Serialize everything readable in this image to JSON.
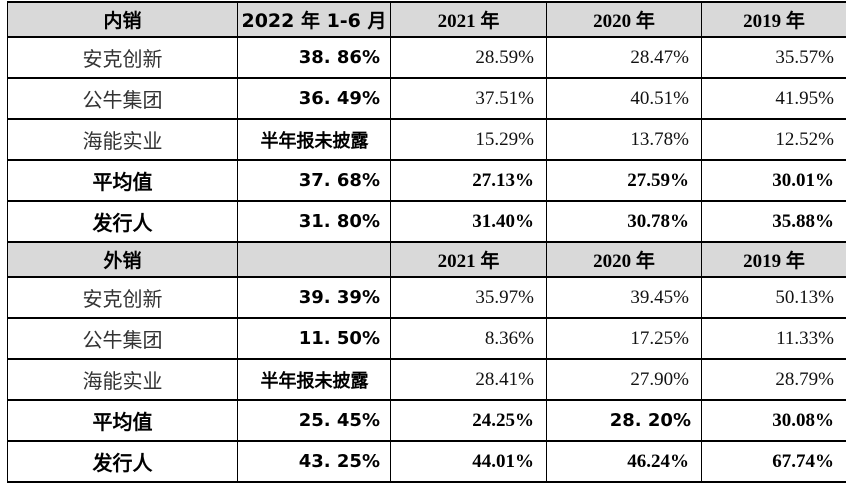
{
  "colors": {
    "header_bg": "#d9d9d9",
    "border": "#000000",
    "text": "#000000"
  },
  "note_text": "半年报未披露",
  "table": {
    "sections": [
      {
        "name": "domestic-sales",
        "header_cells": [
          "内销",
          "2022 年 1-6 月",
          "2021 年",
          "2020 年",
          "2019 年"
        ],
        "rows": [
          {
            "label": "安克创新",
            "emphasis": false,
            "values": [
              "38. 86%",
              "28.59%",
              "28.47%",
              "35.57%"
            ]
          },
          {
            "label": "公牛集团",
            "emphasis": false,
            "values": [
              "36. 49%",
              "37.51%",
              "40.51%",
              "41.95%"
            ]
          },
          {
            "label": "海能实业",
            "emphasis": false,
            "values": [
              "半年报未披露",
              "15.29%",
              "13.78%",
              "12.52%"
            ]
          },
          {
            "label": "平均值",
            "emphasis": true,
            "values": [
              "37. 68%",
              "27.13%",
              "27.59%",
              "30.01%"
            ]
          },
          {
            "label": "发行人",
            "emphasis": true,
            "values": [
              "31. 80%",
              "31.40%",
              "30.78%",
              "35.88%"
            ]
          }
        ]
      },
      {
        "name": "export-sales",
        "header_cells": [
          "外销",
          "",
          "2021 年",
          "2020 年",
          "2019 年"
        ],
        "rows": [
          {
            "label": "安克创新",
            "emphasis": false,
            "values": [
              "39. 39%",
              "35.97%",
              "39.45%",
              "50.13%"
            ]
          },
          {
            "label": "公牛集团",
            "emphasis": false,
            "values": [
              "11. 50%",
              "8.36%",
              "17.25%",
              "11.33%"
            ]
          },
          {
            "label": "海能实业",
            "emphasis": false,
            "values": [
              "半年报未披露",
              "28.41%",
              "27.90%",
              "28.79%"
            ]
          },
          {
            "label": "平均值",
            "emphasis": true,
            "values": [
              "25. 45%",
              "24.25%",
              "28. 20%",
              "30.08%"
            ],
            "heiti_cols": [
              2
            ]
          },
          {
            "label": "发行人",
            "emphasis": true,
            "values": [
              "43. 25%",
              "44.01%",
              "46.24%",
              "67.74%"
            ]
          }
        ]
      }
    ]
  }
}
